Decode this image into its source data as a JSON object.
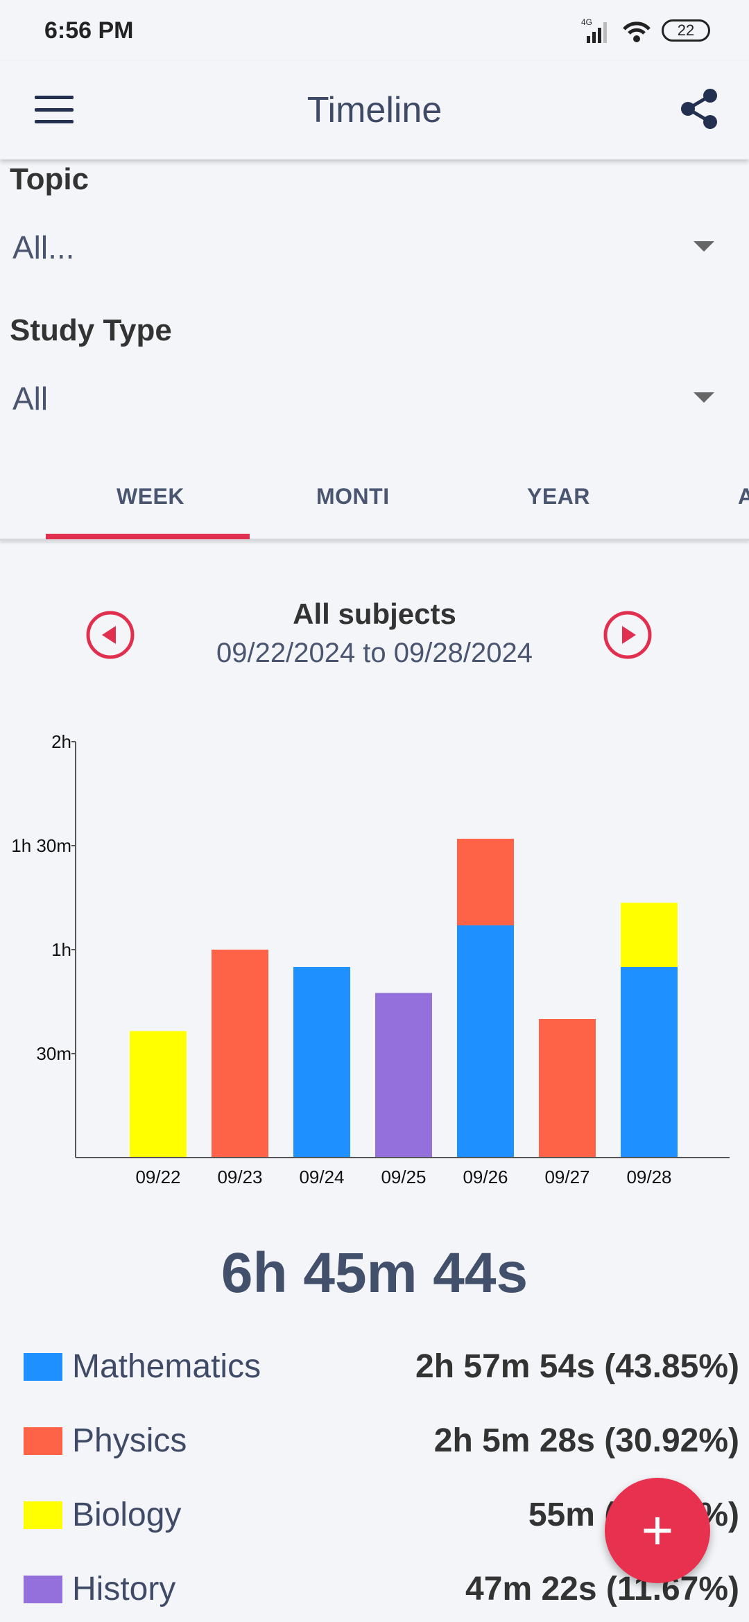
{
  "status_bar": {
    "time": "6:56 PM",
    "network": "4G",
    "battery": "22"
  },
  "app_bar": {
    "title": "Timeline"
  },
  "filters": {
    "topic_label": "Topic",
    "topic_value": "All...",
    "study_type_label": "Study Type",
    "study_type_value": "All"
  },
  "tabs": [
    {
      "label": "WEEK",
      "selected": true
    },
    {
      "label": "MONTI",
      "selected": false
    },
    {
      "label": "YEAR",
      "selected": false
    },
    {
      "label": "A",
      "selected": false
    }
  ],
  "period": {
    "subject": "All subjects",
    "range": "09/22/2024 to 09/28/2024"
  },
  "chart_data": {
    "type": "bar",
    "stacked": true,
    "categories": [
      "09/22",
      "09/23",
      "09/24",
      "09/25",
      "09/26",
      "09/27",
      "09/28"
    ],
    "y_ticks": [
      "2h",
      "1h 30m",
      "1h",
      "30m"
    ],
    "ylim_minutes": [
      0,
      120
    ],
    "series": [
      {
        "name": "Mathematics",
        "color": "#1e90ff",
        "values": [
          0,
          0,
          55,
          0,
          67,
          0,
          55
        ]
      },
      {
        "name": "Physics",
        "color": "#ff6347",
        "values": [
          0,
          60,
          0,
          0,
          25,
          40,
          0
        ]
      },
      {
        "name": "Biology",
        "color": "#ffff00",
        "values": [
          36.5,
          0,
          0,
          0,
          0,
          0,
          18.5
        ]
      },
      {
        "name": "History",
        "color": "#9370db",
        "values": [
          0,
          0,
          0,
          47.5,
          0,
          0,
          0
        ]
      }
    ]
  },
  "total": "6h 45m 44s",
  "legend": [
    {
      "name": "Mathematics",
      "value": "2h 57m 54s (43.85%)",
      "color": "#1e90ff"
    },
    {
      "name": "Physics",
      "value": "2h 5m 28s (30.92%)",
      "color": "#ff6347"
    },
    {
      "name": "Biology",
      "value": "55m (13.56%)",
      "color": "#ffff00"
    },
    {
      "name": "History",
      "value": "47m 22s (11.67%)",
      "color": "#9370db"
    }
  ],
  "fab": {
    "label": "+"
  }
}
